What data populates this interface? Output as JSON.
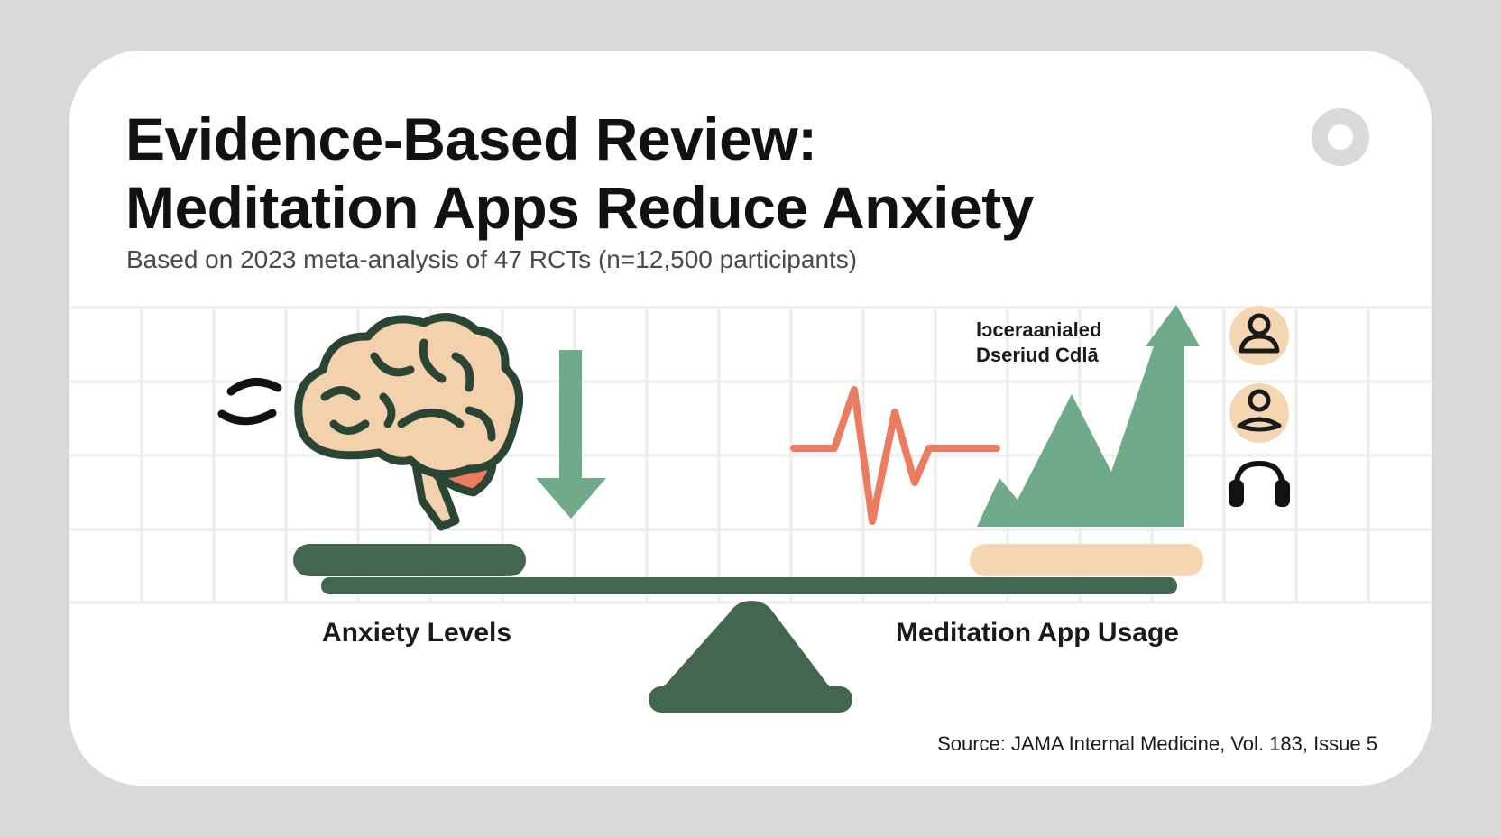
{
  "header": {
    "title_line1": "Evidence-Based Review:",
    "title_line2": "Meditation Apps Reduce Anxiety",
    "subtitle": "Based on 2023 meta-analysis of 47 RCTs (n=12,500 participants)"
  },
  "diagram": {
    "left_label": "Anxiety Levels",
    "right_label": "Meditation App Usage",
    "legend_line1": "lɔceraanialed",
    "legend_line2": "Dseriud Cdlā"
  },
  "icons": [
    "ring-icon",
    "sound-waves-icon",
    "brain-icon",
    "down-arrow-icon",
    "heartbeat-icon",
    "mountain-up-arrow-icon",
    "person-icon",
    "meditating-person-icon",
    "headphones-icon",
    "seesaw-fulcrum-icon"
  ],
  "colors": {
    "background": "#d9d9d9",
    "card": "#ffffff",
    "dark_green": "#426650",
    "light_green": "#6fab8b",
    "peach": "#f5d6b3",
    "coral": "#ec7c5f",
    "brain_fill": "#f3d1ad",
    "brain_outline": "#2b4535"
  },
  "footer": {
    "source": "Source: JAMA Internal Medicine, Vol. 183, Issue 5"
  }
}
